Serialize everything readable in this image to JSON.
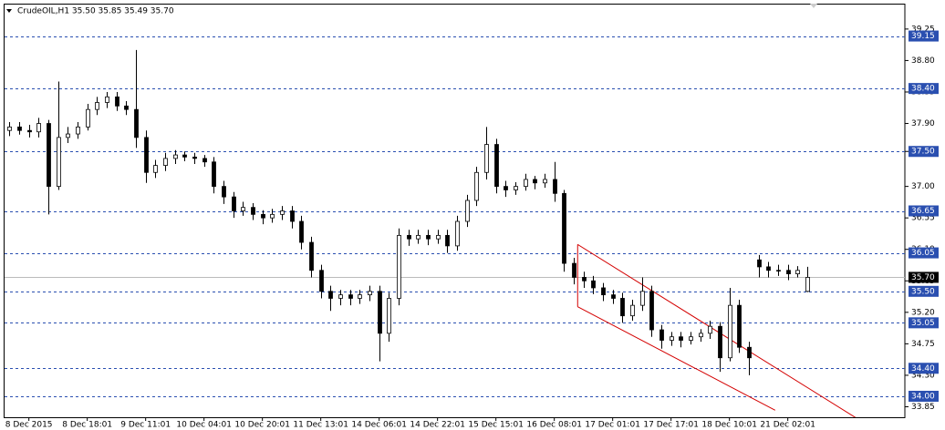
{
  "chart_data": {
    "type": "candlestick",
    "title": "CrudeOIL,H1  35.50 35.85 35.49 35.70",
    "categories": [
      null,
      null,
      "8 Dec 2015",
      null,
      null,
      null,
      null,
      null,
      "8 Dec 18:01",
      null,
      null,
      null,
      null,
      null,
      "9 Dec 11:01",
      null,
      null,
      null,
      null,
      null,
      "10 Dec 04:01",
      null,
      null,
      null,
      null,
      null,
      "10 Dec 20:01",
      null,
      null,
      null,
      null,
      null,
      "11 Dec 13:01",
      null,
      null,
      null,
      null,
      null,
      "14 Dec 06:01",
      null,
      null,
      null,
      null,
      null,
      "14 Dec 22:01",
      null,
      null,
      null,
      null,
      null,
      "15 Dec 15:01",
      null,
      null,
      null,
      null,
      null,
      "16 Dec 08:01",
      null,
      null,
      null,
      null,
      null,
      "17 Dec 01:01",
      null,
      null,
      null,
      null,
      null,
      "17 Dec 17:01",
      null,
      null,
      null,
      null,
      null,
      "18 Dec 10:01",
      null,
      null,
      null,
      null,
      null,
      "21 Dec 02:01",
      null,
      null
    ],
    "open": [
      37.8,
      37.85,
      37.8,
      37.78,
      37.9,
      37.0,
      37.7,
      37.75,
      37.85,
      38.1,
      38.2,
      38.28,
      38.15,
      38.1,
      37.7,
      37.2,
      37.3,
      37.4,
      37.45,
      37.42,
      37.4,
      37.35,
      37.0,
      36.85,
      36.65,
      36.7,
      36.6,
      36.55,
      36.6,
      36.65,
      36.5,
      36.2,
      35.8,
      35.5,
      35.4,
      35.45,
      35.4,
      35.45,
      35.5,
      34.9,
      35.4,
      36.3,
      36.25,
      36.3,
      36.25,
      36.3,
      36.15,
      36.5,
      36.8,
      37.2,
      37.6,
      37.0,
      36.95,
      37.0,
      37.1,
      37.05,
      37.1,
      36.9,
      35.9,
      35.7,
      35.65,
      35.55,
      35.45,
      35.4,
      35.15,
      35.3,
      35.5,
      34.95,
      34.8,
      34.85,
      34.8,
      34.85,
      34.9,
      35.0,
      34.55,
      35.3,
      34.7,
      35.95,
      35.85,
      35.8,
      35.8,
      35.75,
      35.5
    ],
    "high": [
      37.92,
      37.92,
      37.88,
      37.98,
      37.95,
      38.5,
      37.85,
      37.92,
      38.18,
      38.28,
      38.35,
      38.35,
      38.22,
      38.95,
      37.8,
      37.38,
      37.48,
      37.52,
      37.5,
      37.48,
      37.45,
      37.42,
      37.08,
      36.92,
      36.78,
      36.76,
      36.66,
      36.68,
      36.72,
      36.72,
      36.58,
      36.28,
      35.88,
      35.58,
      35.52,
      35.52,
      35.52,
      35.58,
      35.58,
      35.48,
      36.4,
      36.38,
      36.38,
      36.38,
      36.38,
      36.38,
      36.58,
      36.88,
      37.28,
      37.85,
      37.68,
      37.08,
      37.06,
      37.18,
      37.15,
      37.18,
      37.35,
      36.95,
      35.98,
      35.78,
      35.72,
      35.62,
      35.52,
      35.48,
      35.38,
      35.7,
      35.58,
      35.02,
      34.92,
      34.92,
      34.92,
      34.96,
      35.08,
      35.06,
      35.55,
      35.38,
      34.78,
      36.02,
      35.92,
      35.88,
      35.88,
      35.86,
      35.85
    ],
    "low": [
      37.72,
      37.74,
      37.7,
      37.7,
      36.6,
      36.95,
      37.62,
      37.68,
      37.8,
      38.02,
      38.12,
      38.08,
      38.02,
      37.55,
      37.05,
      37.12,
      37.22,
      37.32,
      37.36,
      37.32,
      37.28,
      36.9,
      36.75,
      36.55,
      36.58,
      36.52,
      36.46,
      36.48,
      36.52,
      36.4,
      36.1,
      35.7,
      35.4,
      35.22,
      35.3,
      35.3,
      35.32,
      35.36,
      34.5,
      34.78,
      35.3,
      36.15,
      36.18,
      36.16,
      36.18,
      36.05,
      36.08,
      36.42,
      36.72,
      37.1,
      36.9,
      36.85,
      36.88,
      36.94,
      36.96,
      36.98,
      36.78,
      35.78,
      35.6,
      35.55,
      35.46,
      35.36,
      35.32,
      35.05,
      35.08,
      35.22,
      34.85,
      34.68,
      34.72,
      34.7,
      34.74,
      34.78,
      34.82,
      34.35,
      34.5,
      34.62,
      34.3,
      35.7,
      35.7,
      35.72,
      35.66,
      35.7,
      35.49
    ],
    "close": [
      37.85,
      37.8,
      37.78,
      37.9,
      37.0,
      37.7,
      37.75,
      37.85,
      38.1,
      38.2,
      38.28,
      38.15,
      38.1,
      37.7,
      37.2,
      37.3,
      37.4,
      37.45,
      37.42,
      37.4,
      37.35,
      37.0,
      36.85,
      36.65,
      36.7,
      36.6,
      36.55,
      36.6,
      36.65,
      36.5,
      36.2,
      35.8,
      35.5,
      35.4,
      35.45,
      35.4,
      35.45,
      35.5,
      34.9,
      35.4,
      36.3,
      36.25,
      36.3,
      36.25,
      36.3,
      36.15,
      36.5,
      36.8,
      37.2,
      37.6,
      37.0,
      36.95,
      37.0,
      37.1,
      37.05,
      37.1,
      36.9,
      35.9,
      35.7,
      35.65,
      35.55,
      35.45,
      35.4,
      35.15,
      35.3,
      35.5,
      34.95,
      34.8,
      34.85,
      34.8,
      34.85,
      34.9,
      35.0,
      34.55,
      35.3,
      34.7,
      34.55,
      35.85,
      35.8,
      35.8,
      35.75,
      35.8,
      35.7
    ],
    "ylim": [
      33.7,
      39.6
    ],
    "yticks": [
      39.25,
      {
        "value": 38.8,
        "label": "38.80"
      },
      38.35,
      {
        "value": 37.9,
        "label": "37.90"
      },
      {
        "value": 37.5,
        "label": "37.50"
      },
      {
        "value": 37.0,
        "label": "37.00"
      },
      36.55,
      {
        "value": 36.1,
        "label": "36.10"
      },
      35.65,
      {
        "value": 35.2,
        "label": "35.20"
      },
      34.75,
      {
        "value": 34.3,
        "label": "34.30"
      },
      33.85
    ],
    "levels": [
      39.15,
      {
        "value": 38.4,
        "label": "38.40"
      },
      {
        "value": 37.5,
        "label": "37.50"
      },
      36.65,
      36.05,
      {
        "value": 35.5,
        "label": "35.50"
      },
      35.05,
      {
        "value": 34.4,
        "label": "34.40"
      },
      {
        "value": 34.0,
        "label": "34.00"
      }
    ],
    "level_color": "#2a4fb0",
    "last_price": {
      "value": 35.7,
      "label": "35.70"
    },
    "trend_color": "#d40000",
    "trendlines": [
      {
        "x": [
          58.4,
          87.6
        ],
        "y": [
          36.17,
          33.64
        ]
      },
      {
        "x": [
          58.4,
          78.7
        ],
        "y": [
          35.28,
          33.8
        ]
      },
      {
        "x": [
          58.4,
          58.4
        ],
        "y": [
          36.17,
          35.28
        ]
      }
    ]
  }
}
